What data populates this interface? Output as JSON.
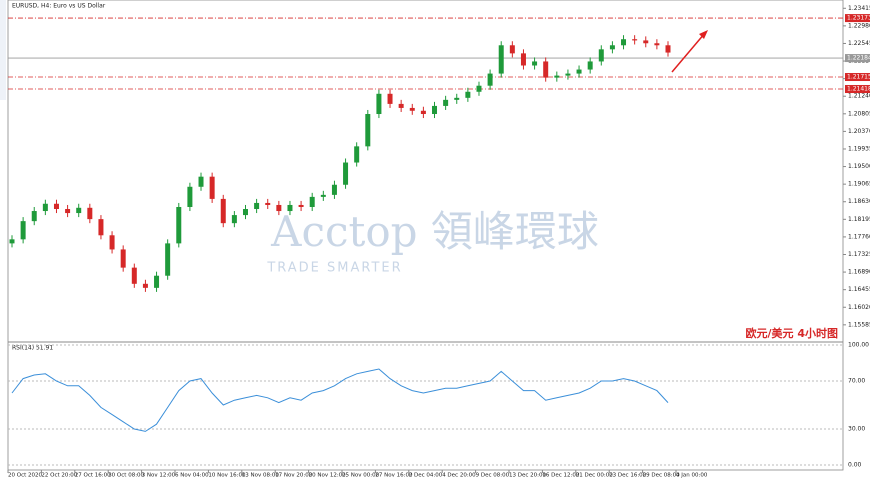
{
  "chart_data": {
    "type": "candlestick",
    "title": "EURUSD, H4:  Euro vs US Dollar",
    "annotation": "欧元/美元    4小时图",
    "watermark": "Acctop 領峰環球",
    "watermark_sub": "TRADE SMARTER",
    "up_color": "#1f9a3a",
    "down_color": "#d62828",
    "ylim": [
      1.1521,
      1.2362
    ],
    "yticks": [
      {
        "value": 1.15585,
        "label": "1.15585"
      },
      {
        "value": 1.1602,
        "label": "1.16020"
      },
      {
        "value": 1.16455,
        "label": "1.16455"
      },
      {
        "value": 1.1689,
        "label": "1.16890"
      },
      {
        "value": 1.17325,
        "label": "1.17325"
      },
      {
        "value": 1.1776,
        "label": "1.17760"
      },
      {
        "value": 1.18195,
        "label": "1.18195"
      },
      {
        "value": 1.1863,
        "label": "1.18630"
      },
      {
        "value": 1.19065,
        "label": "1.19065"
      },
      {
        "value": 1.195,
        "label": "1.19500"
      },
      {
        "value": 1.19935,
        "label": "1.19935"
      },
      {
        "value": 1.2037,
        "label": "1.20370"
      },
      {
        "value": 1.20805,
        "label": "1.20805"
      },
      {
        "value": 1.2124,
        "label": "1.21240"
      },
      {
        "value": 1.21675,
        "label": "1.21675"
      },
      {
        "value": 1.2211,
        "label": "1.22110"
      },
      {
        "value": 1.22545,
        "label": "1.22545"
      },
      {
        "value": 1.2298,
        "label": "1.22980"
      },
      {
        "value": 1.23415,
        "label": "1.23415"
      }
    ],
    "levels": [
      {
        "value": 1.23173,
        "label": "1.23173",
        "color": "#d62828"
      },
      {
        "value": 1.22184,
        "label": "1.22184",
        "color": "#999999"
      },
      {
        "value": 1.21715,
        "label": "1.21715",
        "color": "#d62828"
      },
      {
        "value": 1.21418,
        "label": "1.21418",
        "color": "#d62828"
      }
    ],
    "time_labels": [
      "20 Oct 2020",
      "22 Oct 20:00",
      "27 Oct 16:00",
      "30 Oct 08:00",
      "3 Nov 12:00",
      "6 Nov 04:00",
      "10 Nov 16:00",
      "13 Nov 08:00",
      "17 Nov 20:00",
      "20 Nov 12:00",
      "25 Nov 00:00",
      "27 Nov 16:00",
      "2 Dec 04:00",
      "4 Dec 20:00",
      "9 Dec 08:00",
      "13 Dec 20:00",
      "16 Dec 12:00",
      "21 Dec 00:00",
      "23 Dec 16:00",
      "29 Dec 08:00",
      "4 Jan 00:00"
    ],
    "open": [
      1.176,
      1.177,
      1.1815,
      1.184,
      1.1858,
      1.1845,
      1.1835,
      1.1848,
      1.182,
      1.178,
      1.1745,
      1.17,
      1.166,
      1.165,
      1.168,
      1.176,
      1.185,
      1.19,
      1.1925,
      1.187,
      1.181,
      1.183,
      1.1845,
      1.186,
      1.1855,
      1.184,
      1.1855,
      1.185,
      1.1875,
      1.188,
      1.1905,
      1.196,
      1.2,
      1.208,
      1.213,
      1.2105,
      1.2095,
      1.2088,
      1.208,
      1.21,
      1.2115,
      1.212,
      1.2135,
      1.215,
      1.218,
      1.225,
      1.223,
      1.22,
      1.221,
      1.217,
      1.2175,
      1.218,
      1.219,
      1.221,
      1.224,
      1.225,
      1.2265,
      1.2262,
      1.2255,
      1.225
    ],
    "high": [
      1.178,
      1.1825,
      1.185,
      1.1868,
      1.1868,
      1.1855,
      1.1858,
      1.1858,
      1.183,
      1.179,
      1.1755,
      1.171,
      1.167,
      1.169,
      1.177,
      1.186,
      1.191,
      1.1935,
      1.1935,
      1.188,
      1.184,
      1.1855,
      1.187,
      1.187,
      1.1865,
      1.1865,
      1.1865,
      1.1885,
      1.189,
      1.1915,
      1.197,
      1.201,
      1.209,
      1.214,
      1.214,
      1.2115,
      1.2105,
      1.2098,
      1.211,
      1.2125,
      1.213,
      1.2145,
      1.216,
      1.219,
      1.226,
      1.226,
      1.224,
      1.222,
      1.222,
      1.2185,
      1.219,
      1.22,
      1.222,
      1.225,
      1.226,
      1.2275,
      1.2275,
      1.2272,
      1.2265,
      1.226
    ],
    "low": [
      1.175,
      1.176,
      1.1805,
      1.183,
      1.1835,
      1.1825,
      1.1825,
      1.181,
      1.177,
      1.1735,
      1.169,
      1.165,
      1.164,
      1.164,
      1.167,
      1.175,
      1.184,
      1.189,
      1.186,
      1.18,
      1.18,
      1.182,
      1.1835,
      1.1845,
      1.183,
      1.183,
      1.184,
      1.184,
      1.1865,
      1.187,
      1.1895,
      1.195,
      1.199,
      1.207,
      1.2095,
      1.2085,
      1.2078,
      1.207,
      1.207,
      1.209,
      1.2105,
      1.211,
      1.2125,
      1.214,
      1.217,
      1.222,
      1.219,
      1.219,
      1.216,
      1.216,
      1.2165,
      1.217,
      1.218,
      1.22,
      1.223,
      1.224,
      1.2252,
      1.2245,
      1.224,
      1.2222
    ],
    "close": [
      1.177,
      1.1815,
      1.184,
      1.1858,
      1.1845,
      1.1835,
      1.1848,
      1.182,
      1.178,
      1.1745,
      1.17,
      1.166,
      1.165,
      1.168,
      1.176,
      1.185,
      1.19,
      1.1925,
      1.187,
      1.181,
      1.183,
      1.1845,
      1.186,
      1.1855,
      1.184,
      1.1855,
      1.185,
      1.1875,
      1.188,
      1.1905,
      1.196,
      1.2,
      1.208,
      1.213,
      1.2105,
      1.2095,
      1.2088,
      1.208,
      1.21,
      1.2115,
      1.212,
      1.2135,
      1.215,
      1.218,
      1.225,
      1.223,
      1.22,
      1.221,
      1.217,
      1.2175,
      1.218,
      1.219,
      1.221,
      1.224,
      1.225,
      1.2265,
      1.2262,
      1.2255,
      1.225,
      1.2232
    ],
    "rsi": {
      "title": "RSI(14) 51.91",
      "color": "#3b8fd9",
      "ylim": [
        0,
        100
      ],
      "yticks": [
        {
          "value": 0,
          "label": "0.00"
        },
        {
          "value": 30,
          "label": "30.00"
        },
        {
          "value": 70,
          "label": "70.00"
        },
        {
          "value": 100,
          "label": "100.00"
        }
      ],
      "values": [
        60,
        72,
        75,
        76,
        70,
        66,
        66,
        58,
        48,
        42,
        36,
        30,
        28,
        34,
        48,
        62,
        70,
        72,
        60,
        50,
        54,
        56,
        58,
        56,
        52,
        56,
        54,
        60,
        62,
        66,
        72,
        76,
        78,
        80,
        72,
        66,
        62,
        60,
        62,
        64,
        64,
        66,
        68,
        70,
        78,
        70,
        62,
        62,
        54,
        56,
        58,
        60,
        64,
        70,
        70,
        72,
        70,
        66,
        62,
        52
      ]
    }
  }
}
